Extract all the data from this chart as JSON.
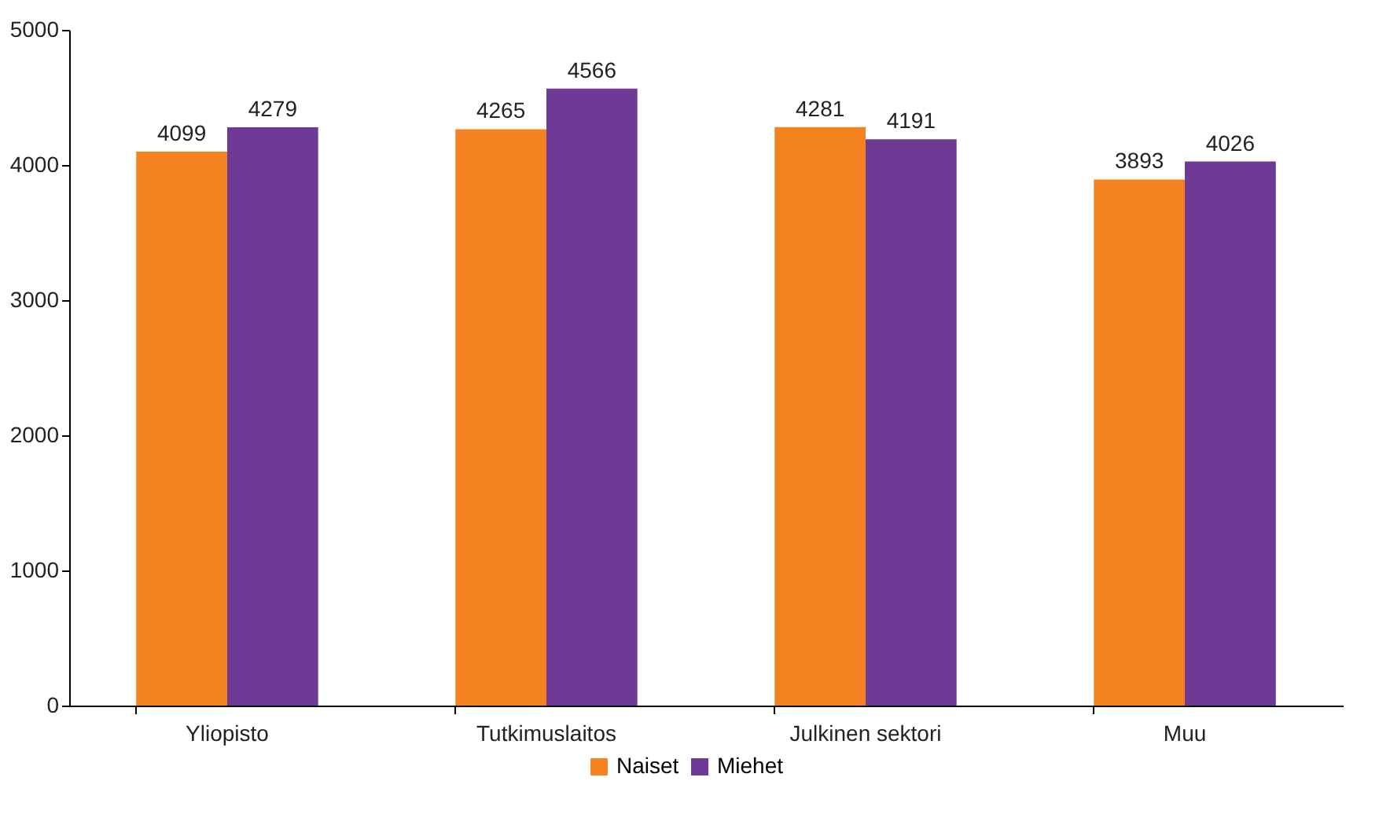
{
  "chart_data": {
    "type": "bar",
    "categories": [
      "Yliopisto",
      "Tutkimuslaitos",
      "Julkinen sektori",
      "Muu"
    ],
    "series": [
      {
        "name": "Naiset",
        "color": "#f58220",
        "values": [
          4099,
          4265,
          4281,
          3893
        ]
      },
      {
        "name": "Miehet",
        "color": "#6f3996",
        "values": [
          4279,
          4566,
          4191,
          4026
        ]
      }
    ],
    "ylim": [
      0,
      5000
    ],
    "yticks": [
      0,
      {
        "value": 1000,
        "label": "1000"
      },
      {
        "value": 2000,
        "label": "2000"
      },
      {
        "value": 3000,
        "label": "3000"
      },
      {
        "value": 4000,
        "label": "4000"
      },
      {
        "value": 5000,
        "label": "5000"
      }
    ],
    "grid": false,
    "legend": "bottom",
    "data_labels": true
  }
}
